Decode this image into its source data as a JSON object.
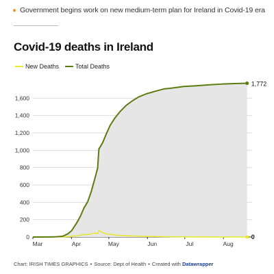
{
  "related_link": {
    "text": "Government begins work on new medium-term plan for Ireland in Covid-19 era",
    "bullet_color": "#e0a030"
  },
  "chart_data": {
    "type": "area",
    "title": "Covid-19 deaths in Ireland",
    "xlabel": "",
    "ylabel": "",
    "x_ticks": [
      "Mar",
      "Apr",
      "May",
      "Jun",
      "Jul",
      "Aug"
    ],
    "y_ticks": [
      "0",
      "200",
      "400",
      "600",
      "800",
      "1,000",
      "1,200",
      "1,400",
      "1,600"
    ],
    "ylim": [
      0,
      1800
    ],
    "grid": true,
    "legend_placement": "top-left",
    "x": [
      "2020-03-01",
      "2020-03-08",
      "2020-03-15",
      "2020-03-20",
      "2020-03-25",
      "2020-03-29",
      "2020-04-01",
      "2020-04-05",
      "2020-04-08",
      "2020-04-11",
      "2020-04-14",
      "2020-04-17",
      "2020-04-20",
      "2020-04-22",
      "2020-04-23",
      "2020-04-26",
      "2020-04-29",
      "2020-05-02",
      "2020-05-06",
      "2020-05-10",
      "2020-05-15",
      "2020-05-20",
      "2020-05-25",
      "2020-05-31",
      "2020-06-07",
      "2020-06-14",
      "2020-06-21",
      "2020-06-30",
      "2020-07-10",
      "2020-07-20",
      "2020-07-31",
      "2020-08-10",
      "2020-08-20"
    ],
    "series": [
      {
        "name": "New Deaths",
        "color": "#e8e82a",
        "values": [
          0,
          0,
          0,
          2,
          3,
          5,
          10,
          14,
          22,
          30,
          27,
          38,
          44,
          39,
          77,
          50,
          35,
          33,
          25,
          18,
          15,
          12,
          10,
          8,
          6,
          4,
          3,
          2,
          1,
          1,
          0,
          1,
          0
        ]
      },
      {
        "name": "Total Deaths",
        "color": "#5c7b0f",
        "values": [
          0,
          0,
          1,
          3,
          9,
          36,
          71,
          158,
          235,
          334,
          406,
          530,
          687,
          794,
          1014,
          1087,
          1190,
          1286,
          1375,
          1446,
          1518,
          1571,
          1615,
          1650,
          1679,
          1706,
          1717,
          1735,
          1743,
          1754,
          1763,
          1768,
          1772
        ]
      }
    ],
    "end_labels": [
      "1,772",
      "0"
    ]
  },
  "footer": {
    "chart_credit": "Chart: IRISH TIMES GRAPHICS",
    "separator": "•",
    "source": "Source: Dept of Health",
    "created_with": "Created with",
    "tool": "Datawrapper"
  }
}
